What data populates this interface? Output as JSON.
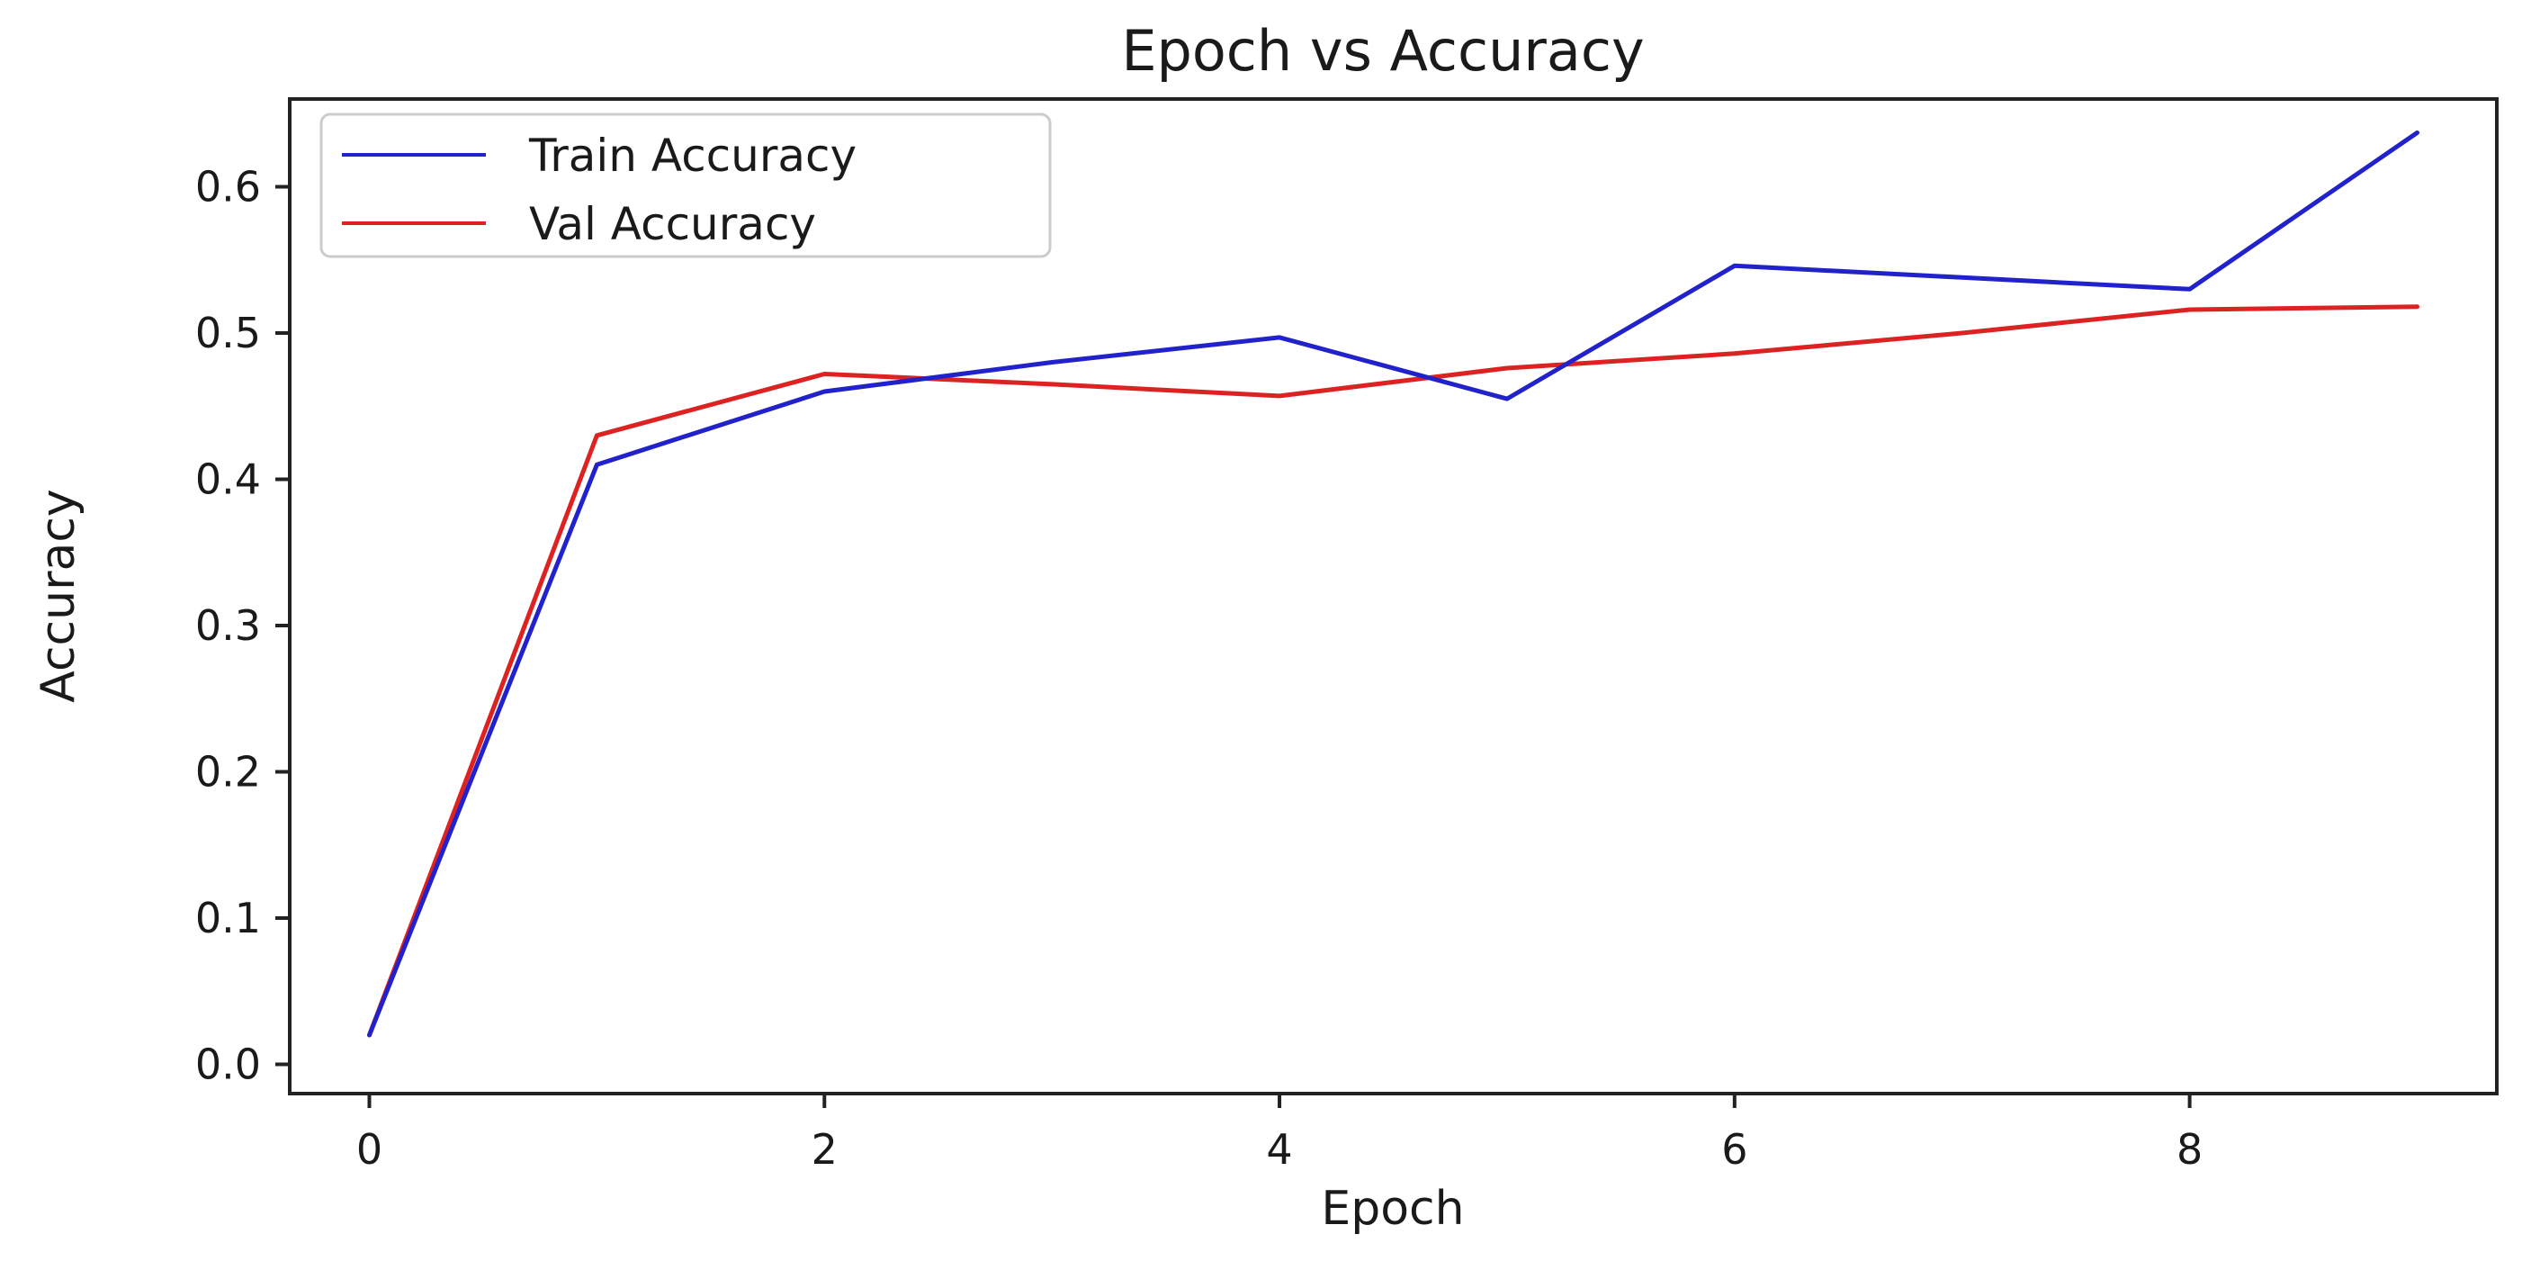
{
  "chart_data": {
    "type": "line",
    "title": "Epoch vs Accuracy",
    "xlabel": "Epoch",
    "ylabel": "Accuracy",
    "x": [
      0,
      1,
      2,
      3,
      4,
      5,
      6,
      7,
      8,
      9
    ],
    "xlim": [
      -0.35,
      9.35
    ],
    "ylim": [
      -0.02,
      0.66
    ],
    "xticks": [
      0,
      2,
      4,
      6,
      8
    ],
    "xtick_labels": [
      "0",
      "2",
      "4",
      "6",
      "8"
    ],
    "yticks": [
      0.0,
      0.1,
      0.2,
      0.3,
      0.4,
      0.5,
      0.6
    ],
    "ytick_labels": [
      "0.0",
      "0.1",
      "0.2",
      "0.3",
      "0.4",
      "0.5",
      "0.6"
    ],
    "grid": false,
    "legend_position": "top-left",
    "series": [
      {
        "name": "Train Accuracy",
        "color": "#2222cc",
        "values": [
          0.02,
          0.41,
          0.46,
          0.48,
          0.497,
          0.455,
          0.546,
          0.538,
          0.53,
          0.637
        ]
      },
      {
        "name": "Val Accuracy",
        "color": "#dd2222",
        "values": [
          0.02,
          0.43,
          0.472,
          0.465,
          0.457,
          0.476,
          0.486,
          0.5,
          0.516,
          0.518
        ]
      }
    ]
  }
}
